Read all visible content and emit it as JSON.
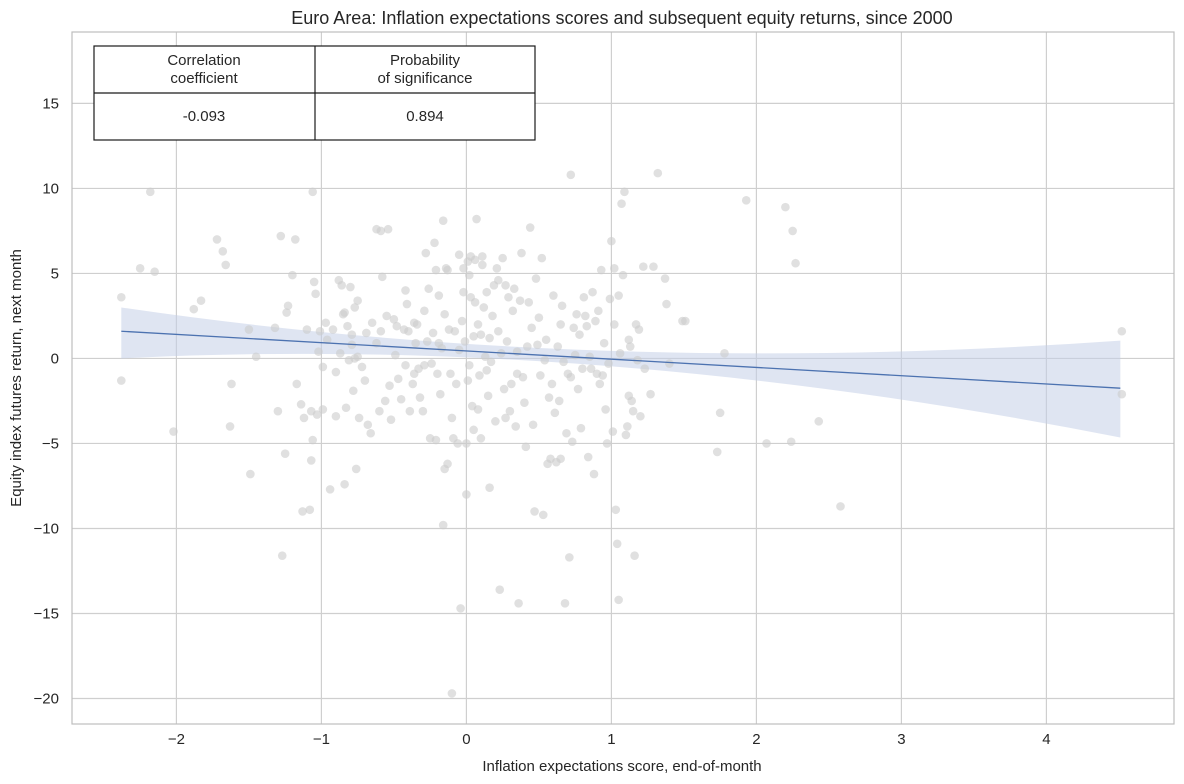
{
  "chart_data": {
    "type": "scatter",
    "title": "Euro Area: Inflation expectations scores and subsequent equity returns, since 2000",
    "xlabel": "Inflation expectations score, end-of-month",
    "ylabel": "Equity index futures return, next month",
    "xlim": [
      -2.72,
      4.88
    ],
    "ylim": [
      -21.5,
      19.2
    ],
    "x_ticks": [
      -2,
      -1,
      0,
      1,
      2,
      3,
      4
    ],
    "x_tick_labels": [
      "−2",
      "−1",
      "0",
      "1",
      "2",
      "3",
      "4"
    ],
    "y_ticks": [
      -20,
      -15,
      -10,
      -5,
      0,
      5,
      10,
      15
    ],
    "y_tick_labels": [
      "−20",
      "−15",
      "−10",
      "−5",
      "0",
      "5",
      "10",
      "15"
    ],
    "grid": true,
    "colors": {
      "points": "#cccccc",
      "regression_line": "#4c72b0",
      "confidence_band": "#c5d0e8",
      "grid": "#cfcfcf",
      "axes": "#bdbdbd"
    },
    "regression": {
      "x": [
        -2.38,
        4.51
      ],
      "y": [
        1.6,
        -1.75
      ],
      "ci_upper": [
        3.0,
        1.05
      ],
      "ci_lower": [
        0.0,
        -4.65
      ],
      "ci_mid_x": 0.9,
      "ci_mid_upper": 0.45,
      "ci_mid_lower": -0.45
    },
    "correlation_table": {
      "headers": [
        "Correlation\ncoefficient",
        "Probability\nof significance"
      ],
      "values": [
        "-0.093",
        "0.894"
      ]
    },
    "points": [
      [
        -2.38,
        3.6
      ],
      [
        -2.38,
        -1.3
      ],
      [
        -2.25,
        5.3
      ],
      [
        -2.18,
        9.8
      ],
      [
        -2.15,
        5.1
      ],
      [
        -2.02,
        -4.3
      ],
      [
        -1.88,
        2.9
      ],
      [
        -1.83,
        3.4
      ],
      [
        -1.72,
        7.0
      ],
      [
        -1.68,
        6.3
      ],
      [
        -1.66,
        5.5
      ],
      [
        -1.63,
        -4.0
      ],
      [
        -1.62,
        -1.5
      ],
      [
        -1.5,
        1.7
      ],
      [
        -1.49,
        -6.8
      ],
      [
        -1.45,
        0.1
      ],
      [
        -1.32,
        1.8
      ],
      [
        -1.3,
        -3.1
      ],
      [
        -1.28,
        7.2
      ],
      [
        -1.27,
        -11.6
      ],
      [
        -1.25,
        -5.6
      ],
      [
        -1.24,
        2.7
      ],
      [
        -1.23,
        3.1
      ],
      [
        -1.2,
        4.9
      ],
      [
        -1.18,
        7.0
      ],
      [
        -1.17,
        -1.5
      ],
      [
        -1.14,
        -2.7
      ],
      [
        -1.13,
        -9.0
      ],
      [
        -1.12,
        -3.5
      ],
      [
        -1.1,
        1.7
      ],
      [
        -1.08,
        -8.9
      ],
      [
        -1.07,
        -3.1
      ],
      [
        -1.07,
        -6.0
      ],
      [
        -1.06,
        9.8
      ],
      [
        -1.06,
        -4.8
      ],
      [
        -1.05,
        4.5
      ],
      [
        -1.04,
        3.8
      ],
      [
        -1.03,
        -3.3
      ],
      [
        -1.01,
        1.6
      ],
      [
        -0.99,
        -0.5
      ],
      [
        -0.99,
        -3.0
      ],
      [
        -0.97,
        2.1
      ],
      [
        -0.96,
        1.1
      ],
      [
        -0.94,
        -7.7
      ],
      [
        -0.92,
        1.7
      ],
      [
        -0.9,
        -3.4
      ],
      [
        -0.88,
        4.6
      ],
      [
        -0.87,
        0.3
      ],
      [
        -0.86,
        4.3
      ],
      [
        -0.85,
        2.6
      ],
      [
        -0.84,
        -7.4
      ],
      [
        -0.84,
        2.7
      ],
      [
        -0.83,
        -2.9
      ],
      [
        -0.82,
        1.9
      ],
      [
        -0.81,
        -0.1
      ],
      [
        -0.8,
        4.2
      ],
      [
        -0.79,
        1.4
      ],
      [
        -0.79,
        0.8
      ],
      [
        -0.78,
        -1.9
      ],
      [
        -0.77,
        0.0
      ],
      [
        -0.77,
        3.0
      ],
      [
        -0.76,
        -6.5
      ],
      [
        -0.75,
        3.4
      ],
      [
        -0.75,
        0.1
      ],
      [
        -0.74,
        -3.5
      ],
      [
        -0.72,
        -0.5
      ],
      [
        -0.7,
        -1.3
      ],
      [
        -0.69,
        1.5
      ],
      [
        -0.68,
        -3.9
      ],
      [
        -0.66,
        -4.4
      ],
      [
        -0.65,
        2.1
      ],
      [
        -0.62,
        7.6
      ],
      [
        -0.6,
        -3.1
      ],
      [
        -0.59,
        7.5
      ],
      [
        -0.59,
        1.6
      ],
      [
        -0.58,
        4.8
      ],
      [
        -0.56,
        -2.5
      ],
      [
        -0.55,
        2.5
      ],
      [
        -0.54,
        7.6
      ],
      [
        -0.53,
        -1.6
      ],
      [
        -0.52,
        -3.6
      ],
      [
        -0.5,
        2.3
      ],
      [
        -0.49,
        0.2
      ],
      [
        -0.48,
        1.9
      ],
      [
        -0.47,
        -1.2
      ],
      [
        -0.45,
        -2.4
      ],
      [
        -0.43,
        1.7
      ],
      [
        -0.42,
        -0.4
      ],
      [
        -0.42,
        4.0
      ],
      [
        -0.41,
        3.2
      ],
      [
        -0.4,
        1.6
      ],
      [
        -0.39,
        -3.1
      ],
      [
        -0.37,
        -1.5
      ],
      [
        -0.36,
        -0.9
      ],
      [
        -0.35,
        0.9
      ],
      [
        -0.34,
        2.0
      ],
      [
        -0.33,
        -0.6
      ],
      [
        -0.32,
        -2.3
      ],
      [
        -0.3,
        -3.1
      ],
      [
        -0.29,
        2.8
      ],
      [
        -0.29,
        -0.4
      ],
      [
        -0.28,
        6.2
      ],
      [
        -0.27,
        1.0
      ],
      [
        -0.26,
        4.1
      ],
      [
        -0.25,
        -4.7
      ],
      [
        -0.24,
        -0.3
      ],
      [
        -0.23,
        1.5
      ],
      [
        -0.22,
        6.8
      ],
      [
        -0.21,
        -4.8
      ],
      [
        -0.21,
        5.2
      ],
      [
        -0.2,
        -0.9
      ],
      [
        -0.19,
        0.9
      ],
      [
        -0.19,
        3.7
      ],
      [
        -0.18,
        -2.1
      ],
      [
        -0.17,
        0.6
      ],
      [
        -0.16,
        -9.8
      ],
      [
        -0.16,
        8.1
      ],
      [
        -0.15,
        -6.5
      ],
      [
        -0.15,
        2.6
      ],
      [
        -0.14,
        5.3
      ],
      [
        -0.13,
        -6.2
      ],
      [
        -0.13,
        5.2
      ],
      [
        -0.12,
        1.7
      ],
      [
        -0.11,
        -0.9
      ],
      [
        -0.1,
        -3.5
      ],
      [
        -0.1,
        -19.7
      ],
      [
        -0.09,
        -4.7
      ],
      [
        -0.08,
        1.6
      ],
      [
        -0.07,
        -1.5
      ],
      [
        -0.06,
        -5.0
      ],
      [
        -0.05,
        6.1
      ],
      [
        -0.05,
        0.5
      ],
      [
        -0.04,
        -14.7
      ],
      [
        -0.03,
        2.2
      ],
      [
        -0.02,
        5.3
      ],
      [
        -0.01,
        1.0
      ],
      [
        0.0,
        -8.0
      ],
      [
        0.0,
        -5.0
      ],
      [
        0.01,
        -1.3
      ],
      [
        0.01,
        5.7
      ],
      [
        0.02,
        4.9
      ],
      [
        0.02,
        -0.4
      ],
      [
        0.03,
        6.0
      ],
      [
        0.03,
        3.6
      ],
      [
        0.04,
        -2.8
      ],
      [
        0.05,
        1.3
      ],
      [
        0.05,
        -4.2
      ],
      [
        0.06,
        5.8
      ],
      [
        0.06,
        3.3
      ],
      [
        0.07,
        8.2
      ],
      [
        0.08,
        -3.0
      ],
      [
        0.08,
        2.0
      ],
      [
        0.09,
        -1.0
      ],
      [
        0.1,
        1.4
      ],
      [
        0.1,
        -4.7
      ],
      [
        0.11,
        6.0
      ],
      [
        0.11,
        5.5
      ],
      [
        0.12,
        3.0
      ],
      [
        0.13,
        0.1
      ],
      [
        0.14,
        -0.7
      ],
      [
        0.14,
        3.9
      ],
      [
        0.15,
        -2.2
      ],
      [
        0.16,
        -7.6
      ],
      [
        0.16,
        1.2
      ],
      [
        0.17,
        -0.2
      ],
      [
        0.18,
        2.5
      ],
      [
        0.19,
        4.3
      ],
      [
        0.2,
        -3.7
      ],
      [
        0.21,
        5.3
      ],
      [
        0.22,
        4.6
      ],
      [
        0.22,
        1.6
      ],
      [
        0.23,
        -13.6
      ],
      [
        0.24,
        0.3
      ],
      [
        0.25,
        5.9
      ],
      [
        0.26,
        -1.8
      ],
      [
        0.27,
        -3.5
      ],
      [
        0.27,
        4.3
      ],
      [
        0.28,
        1.0
      ],
      [
        0.29,
        3.6
      ],
      [
        0.3,
        -3.1
      ],
      [
        0.31,
        -1.5
      ],
      [
        0.32,
        2.8
      ],
      [
        0.33,
        4.1
      ],
      [
        0.34,
        -4.0
      ],
      [
        0.35,
        0.4
      ],
      [
        0.36,
        -14.4
      ],
      [
        0.37,
        3.4
      ],
      [
        0.38,
        6.2
      ],
      [
        0.39,
        -1.1
      ],
      [
        0.4,
        -2.6
      ],
      [
        0.41,
        -5.2
      ],
      [
        0.42,
        0.7
      ],
      [
        0.43,
        3.3
      ],
      [
        0.44,
        7.7
      ],
      [
        0.45,
        1.8
      ],
      [
        0.46,
        -3.9
      ],
      [
        0.47,
        -9.0
      ],
      [
        0.48,
        4.7
      ],
      [
        0.49,
        0.8
      ],
      [
        0.5,
        2.4
      ],
      [
        0.51,
        -1.0
      ],
      [
        0.52,
        5.9
      ],
      [
        0.53,
        -9.2
      ],
      [
        0.54,
        -0.1
      ],
      [
        0.55,
        1.1
      ],
      [
        0.56,
        -6.2
      ],
      [
        0.57,
        -2.3
      ],
      [
        0.58,
        -5.9
      ],
      [
        0.59,
        -1.5
      ],
      [
        0.6,
        3.7
      ],
      [
        0.61,
        -3.2
      ],
      [
        0.62,
        -6.1
      ],
      [
        0.63,
        0.7
      ],
      [
        0.64,
        -2.5
      ],
      [
        0.65,
        -5.9
      ],
      [
        0.66,
        3.1
      ],
      [
        0.67,
        -0.2
      ],
      [
        0.68,
        -14.4
      ],
      [
        0.69,
        -4.4
      ],
      [
        0.7,
        -0.9
      ],
      [
        0.71,
        -11.7
      ],
      [
        0.72,
        10.8
      ],
      [
        0.73,
        -4.9
      ],
      [
        0.74,
        1.8
      ],
      [
        0.75,
        0.2
      ],
      [
        0.76,
        2.6
      ],
      [
        0.77,
        -1.8
      ],
      [
        0.78,
        1.4
      ],
      [
        0.79,
        -4.1
      ],
      [
        0.8,
        -0.6
      ],
      [
        0.81,
        3.6
      ],
      [
        0.82,
        2.5
      ],
      [
        0.83,
        1.9
      ],
      [
        0.84,
        -5.8
      ],
      [
        0.85,
        0.1
      ],
      [
        0.86,
        -0.6
      ],
      [
        0.87,
        3.9
      ],
      [
        0.88,
        -6.8
      ],
      [
        0.89,
        2.2
      ],
      [
        0.9,
        -0.9
      ],
      [
        0.91,
        2.8
      ],
      [
        0.92,
        -1.5
      ],
      [
        0.93,
        5.2
      ],
      [
        0.94,
        -1.0
      ],
      [
        0.95,
        0.9
      ],
      [
        0.96,
        -3.0
      ],
      [
        0.97,
        -5.0
      ],
      [
        0.98,
        -0.3
      ],
      [
        0.99,
        3.5
      ],
      [
        1.0,
        6.9
      ],
      [
        1.01,
        -4.3
      ],
      [
        1.02,
        2.0
      ],
      [
        1.03,
        -8.9
      ],
      [
        1.04,
        -10.9
      ],
      [
        1.05,
        -14.2
      ],
      [
        1.06,
        0.3
      ],
      [
        1.07,
        9.1
      ],
      [
        1.08,
        4.9
      ],
      [
        1.09,
        9.8
      ],
      [
        1.1,
        -4.5
      ],
      [
        1.11,
        -4.0
      ],
      [
        1.12,
        -2.2
      ],
      [
        1.13,
        0.7
      ],
      [
        1.14,
        -2.5
      ],
      [
        1.15,
        -3.1
      ],
      [
        1.16,
        -11.6
      ],
      [
        1.17,
        2.0
      ],
      [
        1.18,
        -0.1
      ],
      [
        1.19,
        1.7
      ],
      [
        1.2,
        -3.4
      ],
      [
        1.22,
        5.4
      ],
      [
        1.23,
        -0.6
      ],
      [
        1.27,
        -2.1
      ],
      [
        1.29,
        5.4
      ],
      [
        1.32,
        10.9
      ],
      [
        1.37,
        4.7
      ],
      [
        1.38,
        3.2
      ],
      [
        1.4,
        -0.3
      ],
      [
        1.49,
        2.2
      ],
      [
        1.51,
        2.2
      ],
      [
        1.73,
        -5.5
      ],
      [
        1.75,
        -3.2
      ],
      [
        1.78,
        0.3
      ],
      [
        1.93,
        9.3
      ],
      [
        2.07,
        -5.0
      ],
      [
        2.2,
        8.9
      ],
      [
        2.24,
        -4.9
      ],
      [
        2.25,
        7.5
      ],
      [
        2.27,
        5.6
      ],
      [
        2.43,
        -3.7
      ],
      [
        2.58,
        -8.7
      ],
      [
        4.52,
        1.6
      ],
      [
        4.52,
        -2.1
      ],
      [
        1.05,
        3.7
      ],
      [
        1.02,
        5.3
      ],
      [
        0.65,
        2.0
      ],
      [
        0.72,
        -1.1
      ],
      [
        0.35,
        -0.9
      ],
      [
        -0.02,
        3.9
      ],
      [
        -0.36,
        2.1
      ],
      [
        -0.62,
        0.9
      ],
      [
        -0.9,
        -0.8
      ],
      [
        -1.02,
        0.4
      ],
      [
        1.12,
        1.1
      ]
    ]
  }
}
